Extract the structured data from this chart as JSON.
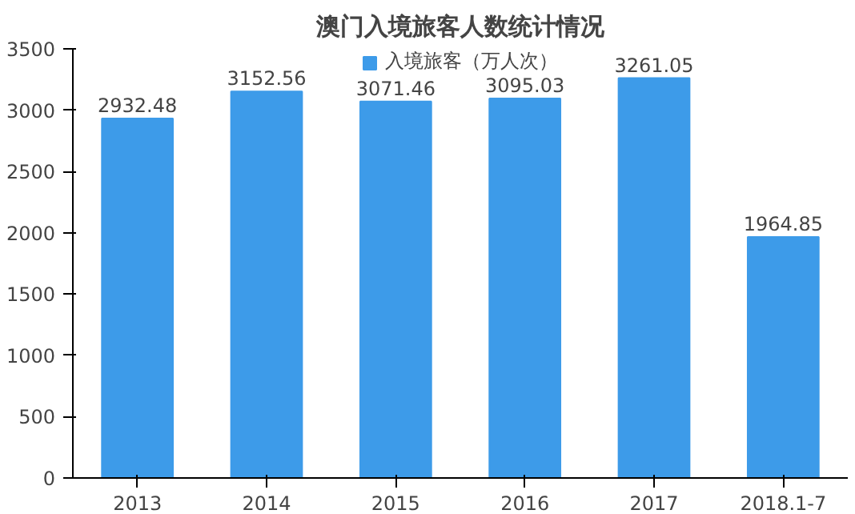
{
  "chart_data": {
    "type": "bar",
    "title": "澳门入境旅客人数统计情况",
    "categories": [
      "2013",
      "2014",
      "2015",
      "2016",
      "2017",
      "2018.1-7"
    ],
    "series": [
      {
        "name": "入境旅客（万人次）",
        "color": "#3d9be9",
        "values": [
          2932.48,
          3152.56,
          3071.46,
          3095.03,
          3261.05,
          1964.85
        ]
      }
    ],
    "ylim": [
      0,
      3500
    ],
    "yticks": [
      0,
      500,
      1000,
      1500,
      2000,
      2500,
      3000,
      3500
    ],
    "grid": false,
    "legend": "top",
    "data_labels": true
  }
}
